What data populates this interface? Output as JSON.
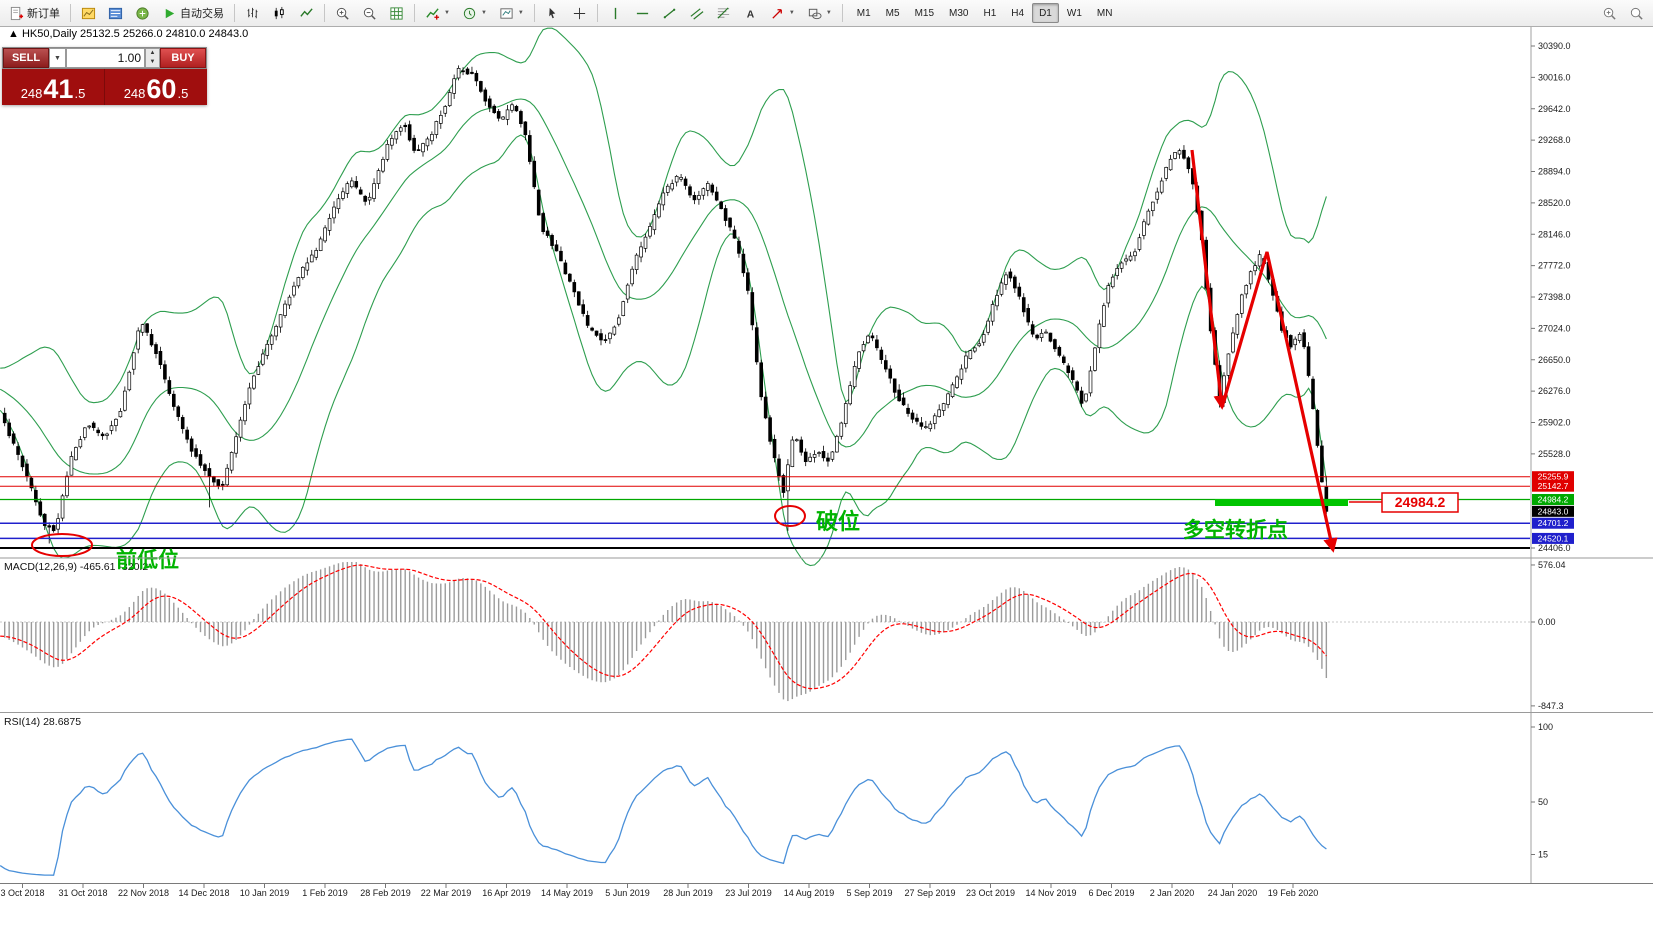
{
  "toolbar": {
    "new_order_label": "新订单",
    "autotrade_label": "自动交易",
    "icons": [
      "new-order",
      "charts-window",
      "market-watch",
      "navigator",
      "autotrade-play",
      "bar-chart",
      "candlestick-chart",
      "line-chart",
      "zoom-in",
      "zoom-out",
      "grid",
      "indicators",
      "periods",
      "templates",
      "cursor",
      "crosshair",
      "vertical-line",
      "horizontal-line",
      "trendline",
      "equidistant-channel",
      "fibonacci",
      "text-label",
      "arrows",
      "shapes",
      "zoom-search",
      "zoom-view"
    ],
    "timeframes": [
      {
        "label": "M1",
        "selected": false
      },
      {
        "label": "M5",
        "selected": false
      },
      {
        "label": "M15",
        "selected": false
      },
      {
        "label": "M30",
        "selected": false
      },
      {
        "label": "H1",
        "selected": false
      },
      {
        "label": "H4",
        "selected": false
      },
      {
        "label": "D1",
        "selected": true
      },
      {
        "label": "W1",
        "selected": false
      },
      {
        "label": "MN",
        "selected": false
      }
    ]
  },
  "quote_panel": {
    "sell_label": "SELL",
    "buy_label": "BUY",
    "volume": "1.00",
    "sell_price": {
      "prefix": "248",
      "big": "41",
      "suffix": ".5"
    },
    "buy_price": {
      "prefix": "248",
      "big": "60",
      "suffix": ".5"
    }
  },
  "chart": {
    "header": "▲ HK50,Daily  25132.5 25266.0 24810.0 24843.0",
    "macd_label": "MACD(12,26,9) -465.61 -320.2",
    "rsi_label": "RSI(14) 28.6875",
    "annotations": {
      "prev_low": "前低位",
      "breakout": "破位",
      "turning_point": "多空转折点",
      "price_callout": "24984.2"
    },
    "colors": {
      "band": "#2e9e4f",
      "bull_fill": "#ffffff",
      "bear_fill": "#000000",
      "candle_stroke": "#000000",
      "macd_hist": "#9b9b9b",
      "macd_signal": "#ff0000",
      "rsi_line": "#4a90d9",
      "annotation_green": "#00b400",
      "arrow_red": "#e60000",
      "marker_green": "#00c400"
    }
  },
  "price_axis": {
    "labels": [
      {
        "text": "30390.0",
        "price": 30390.0
      },
      {
        "text": "30016.0",
        "price": 30016.0
      },
      {
        "text": "29642.0",
        "price": 29642.0
      },
      {
        "text": "29268.0",
        "price": 29268.0
      },
      {
        "text": "28894.0",
        "price": 28894.0
      },
      {
        "text": "28520.0",
        "price": 28520.0
      },
      {
        "text": "28146.0",
        "price": 28146.0
      },
      {
        "text": "27772.0",
        "price": 27772.0
      },
      {
        "text": "27398.0",
        "price": 27398.0
      },
      {
        "text": "27024.0",
        "price": 27024.0
      },
      {
        "text": "26650.0",
        "price": 26650.0
      },
      {
        "text": "26276.0",
        "price": 26276.0
      },
      {
        "text": "25902.0",
        "price": 25902.0
      },
      {
        "text": "25528.0",
        "price": 25528.0
      },
      {
        "text": "24406.0",
        "price": 24406.0
      }
    ],
    "tags": [
      {
        "text": "25255.9",
        "price": 25255.9,
        "color": "#e00000"
      },
      {
        "text": "25142.7",
        "price": 25142.7,
        "color": "#e00000"
      },
      {
        "text": "24984.2",
        "price": 24984.2,
        "color": "#00a800"
      },
      {
        "text": "24843.0",
        "price": 24843.0,
        "color": "#000000"
      },
      {
        "text": "24701.2",
        "price": 24701.2,
        "color": "#2020cc"
      },
      {
        "text": "24520.1",
        "price": 24520.1,
        "color": "#2020cc"
      }
    ]
  },
  "levels": [
    {
      "price": 25255.9,
      "color": "#e00000",
      "width": 1
    },
    {
      "price": 25142.7,
      "color": "#e00000",
      "width": 1
    },
    {
      "price": 24984.2,
      "color": "#00a800",
      "width": 1.2
    },
    {
      "price": 24701.2,
      "color": "#2020cc",
      "width": 1.5
    },
    {
      "price": 24520.1,
      "color": "#2020cc",
      "width": 1.5
    },
    {
      "price": 24406.0,
      "color": "#000000",
      "width": 2
    }
  ],
  "macd_axis": {
    "labels": [
      {
        "text": "576.04",
        "value": 576.04
      },
      {
        "text": "0.00",
        "value": 0
      },
      {
        "text": "-847.3",
        "value": -847.3
      }
    ]
  },
  "rsi_axis": {
    "labels": [
      {
        "text": "100",
        "value": 100
      },
      {
        "text": "50",
        "value": 50
      },
      {
        "text": "15",
        "value": 15
      }
    ]
  },
  "time_axis": {
    "dates": [
      "3 Oct 2018",
      "31 Oct 2018",
      "22 Nov 2018",
      "14 Dec 2018",
      "10 Jan 2019",
      "1 Feb 2019",
      "28 Feb 2019",
      "22 Mar 2019",
      "16 Apr 2019",
      "14 May 2019",
      "5 Jun 2019",
      "28 Jun 2019",
      "23 Jul 2019",
      "14 Aug 2019",
      "5 Sep 2019",
      "27 Sep 2019",
      "23 Oct 2019",
      "14 Nov 2019",
      "6 Dec 2019",
      "2 Jan 2020",
      "24 Jan 2020",
      "19 Feb 2020"
    ]
  },
  "chart_data": {
    "type": "candlestick",
    "symbol": "HK50",
    "period": "Daily",
    "title": "HK50,Daily",
    "ohlc": {
      "open": 25132.5,
      "high": 25266.0,
      "low": 24810.0,
      "close": 24843.0
    },
    "bid": "24841.5",
    "ask": "24860.5",
    "y_range": [
      24406.0,
      30390.0
    ],
    "indicators": [
      {
        "name": "Bollinger Bands",
        "period": 20,
        "deviation": 2
      },
      {
        "name": "MACD",
        "fast": 12,
        "slow": 26,
        "signal": 9,
        "values": [
          -465.61,
          -320.2
        ],
        "scale": [
          576.04,
          0,
          -847.3
        ]
      },
      {
        "name": "RSI",
        "period": 14,
        "value": 28.6875,
        "scale": [
          100,
          50,
          15
        ]
      }
    ],
    "price_path": [
      [
        -200,
        27250
      ],
      [
        -160,
        26900
      ],
      [
        -120,
        26650
      ],
      [
        -80,
        26500
      ],
      [
        -40,
        26300
      ],
      [
        -15,
        26200
      ],
      [
        0,
        26150
      ],
      [
        14,
        25750
      ],
      [
        30,
        25300
      ],
      [
        48,
        24680
      ],
      [
        60,
        24620
      ],
      [
        75,
        25450
      ],
      [
        92,
        25900
      ],
      [
        108,
        25720
      ],
      [
        125,
        26050
      ],
      [
        145,
        27120
      ],
      [
        160,
        26750
      ],
      [
        178,
        26100
      ],
      [
        195,
        25600
      ],
      [
        212,
        25280
      ],
      [
        226,
        25120
      ],
      [
        240,
        25700
      ],
      [
        255,
        26350
      ],
      [
        270,
        26800
      ],
      [
        288,
        27250
      ],
      [
        305,
        27700
      ],
      [
        320,
        27950
      ],
      [
        338,
        28450
      ],
      [
        355,
        28800
      ],
      [
        372,
        28500
      ],
      [
        392,
        29200
      ],
      [
        408,
        29480
      ],
      [
        420,
        29100
      ],
      [
        435,
        29320
      ],
      [
        450,
        29700
      ],
      [
        462,
        30120
      ],
      [
        476,
        30060
      ],
      [
        492,
        29700
      ],
      [
        505,
        29480
      ],
      [
        518,
        29720
      ],
      [
        530,
        29300
      ],
      [
        545,
        28250
      ],
      [
        560,
        27950
      ],
      [
        575,
        27550
      ],
      [
        592,
        27050
      ],
      [
        608,
        26850
      ],
      [
        622,
        27120
      ],
      [
        638,
        27800
      ],
      [
        652,
        28150
      ],
      [
        668,
        28650
      ],
      [
        683,
        28850
      ],
      [
        698,
        28560
      ],
      [
        712,
        28740
      ],
      [
        726,
        28450
      ],
      [
        740,
        28050
      ],
      [
        752,
        27500
      ],
      [
        765,
        26250
      ],
      [
        778,
        25500
      ],
      [
        788,
        25080
      ],
      [
        798,
        25780
      ],
      [
        810,
        25450
      ],
      [
        822,
        25560
      ],
      [
        834,
        25420
      ],
      [
        848,
        26000
      ],
      [
        862,
        26700
      ],
      [
        874,
        26980
      ],
      [
        888,
        26600
      ],
      [
        902,
        26200
      ],
      [
        916,
        25950
      ],
      [
        930,
        25830
      ],
      [
        944,
        26050
      ],
      [
        958,
        26350
      ],
      [
        972,
        26720
      ],
      [
        986,
        26880
      ],
      [
        1000,
        27400
      ],
      [
        1012,
        27720
      ],
      [
        1025,
        27350
      ],
      [
        1038,
        26900
      ],
      [
        1050,
        26990
      ],
      [
        1062,
        26740
      ],
      [
        1075,
        26450
      ],
      [
        1088,
        26100
      ],
      [
        1100,
        26850
      ],
      [
        1112,
        27520
      ],
      [
        1125,
        27820
      ],
      [
        1138,
        27900
      ],
      [
        1150,
        28350
      ],
      [
        1163,
        28700
      ],
      [
        1175,
        29050
      ],
      [
        1185,
        29160
      ],
      [
        1195,
        28880
      ],
      [
        1205,
        28200
      ],
      [
        1215,
        27000
      ],
      [
        1224,
        26150
      ],
      [
        1234,
        26800
      ],
      [
        1245,
        27380
      ],
      [
        1256,
        27720
      ],
      [
        1266,
        27920
      ],
      [
        1276,
        27480
      ],
      [
        1286,
        27030
      ],
      [
        1296,
        26800
      ],
      [
        1306,
        27010
      ],
      [
        1315,
        26280
      ],
      [
        1322,
        25600
      ],
      [
        1330,
        24900
      ]
    ],
    "wick_overrides": [
      {
        "x": 50,
        "low": 24460
      },
      {
        "x": 210,
        "low": 24890
      },
      {
        "x": 788,
        "low": 24610
      }
    ]
  }
}
